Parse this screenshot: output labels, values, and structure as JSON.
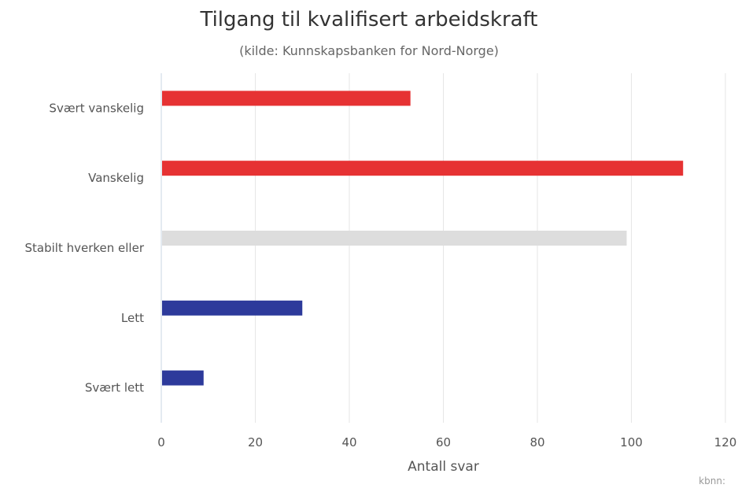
{
  "chart_data": {
    "type": "bar",
    "orientation": "horizontal",
    "title": "Tilgang til kvalifisert arbeidskraft",
    "subtitle": "(kilde: Kunnskapsbanken for Nord-Norge)",
    "xlabel": "Antall svar",
    "ylabel": "",
    "xlim": [
      0,
      120
    ],
    "xticks": [
      0,
      20,
      40,
      60,
      80,
      100,
      120
    ],
    "grid": true,
    "legend": "none",
    "categories": [
      "Svært vanskelig",
      "Vanskelig",
      "Stabilt hverken eller",
      "Lett",
      "Svært lett"
    ],
    "values": [
      53,
      111,
      99,
      30,
      9
    ],
    "colors": [
      "#e63233",
      "#e63233",
      "#dddddd",
      "#2d3a9b",
      "#2d3a9b"
    ]
  },
  "credit": "kbnn:"
}
